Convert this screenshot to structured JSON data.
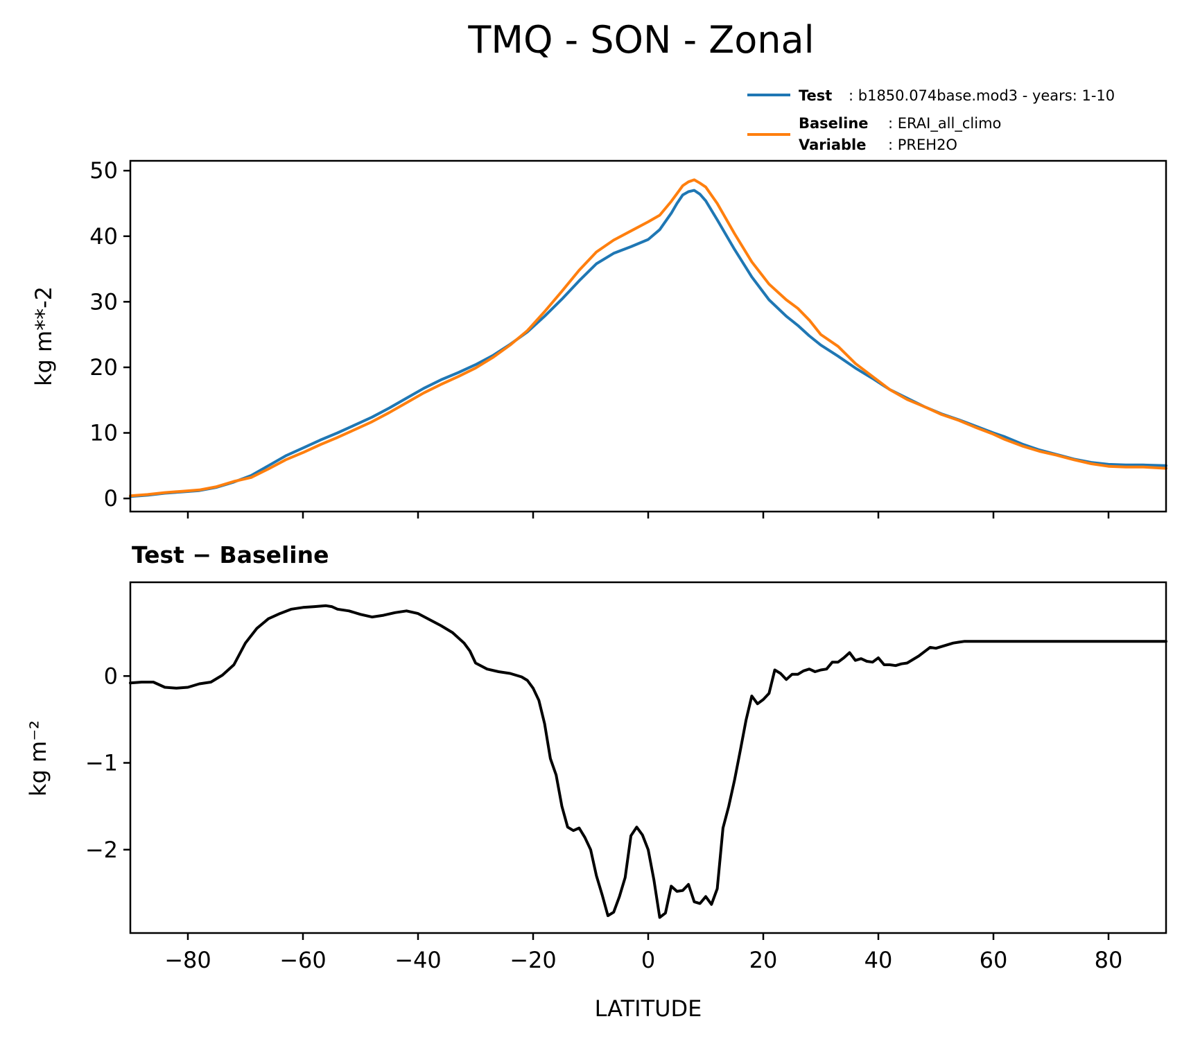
{
  "figure": {
    "title": "TMQ - SON - Zonal",
    "xlabel": "LATITUDE",
    "legend": {
      "test_key": "Test",
      "test_value": ": b1850.074base.mod3 - years: 1-10",
      "baseline_key": "Baseline",
      "baseline_value": ": ERAI_all_climo",
      "variable_key": "Variable",
      "variable_value": ": PREH2O"
    },
    "top_panel": {
      "ylabel": "kg m**-2"
    },
    "bottom_panel": {
      "title": "Test − Baseline",
      "ylabel": "kg m⁻²"
    }
  },
  "chart_data": [
    {
      "type": "line",
      "panel": "top",
      "ylabel": "kg m**-2",
      "xlim": [
        -90,
        90
      ],
      "ylim": [
        -2,
        51.5
      ],
      "xticks": [
        -80,
        -60,
        -40,
        -20,
        0,
        20,
        40,
        60,
        80
      ],
      "yticks": [
        0,
        10,
        20,
        30,
        40,
        50
      ],
      "ytick_labels": [
        "0",
        "10",
        "20",
        "30",
        "40",
        "50"
      ],
      "legend_position": "top-right, above plot",
      "grid": false,
      "x": [
        -90,
        -87,
        -84,
        -81,
        -78,
        -75,
        -72,
        -69,
        -66,
        -63,
        -60,
        -57,
        -54,
        -51,
        -48,
        -45,
        -42,
        -39,
        -36,
        -33,
        -30,
        -27,
        -24,
        -21,
        -18,
        -15,
        -12,
        -9,
        -6,
        -3,
        0,
        2,
        4,
        5,
        6,
        7,
        8,
        9,
        10,
        12,
        15,
        18,
        21,
        24,
        26,
        28,
        30,
        33,
        36,
        39,
        42,
        45,
        48,
        51,
        54,
        57,
        60,
        62,
        65,
        68,
        71,
        74,
        77,
        80,
        83,
        86,
        90
      ],
      "series": [
        {
          "name": "Test",
          "color": "#1f77b4",
          "values": [
            0.3,
            0.5,
            0.8,
            1.0,
            1.2,
            1.7,
            2.5,
            3.5,
            5.0,
            6.5,
            7.7,
            8.9,
            10.0,
            11.2,
            12.4,
            13.8,
            15.3,
            16.8,
            18.1,
            19.2,
            20.4,
            21.8,
            23.5,
            25.4,
            27.8,
            30.4,
            33.2,
            35.8,
            37.4,
            38.4,
            39.5,
            41.0,
            43.5,
            45.0,
            46.3,
            46.8,
            47.0,
            46.4,
            45.4,
            42.5,
            38.0,
            33.8,
            30.3,
            27.8,
            26.4,
            24.8,
            23.4,
            21.7,
            19.9,
            18.3,
            16.6,
            15.3,
            14.0,
            12.9,
            12.0,
            11.0,
            10.0,
            9.4,
            8.3,
            7.4,
            6.7,
            6.0,
            5.5,
            5.2,
            5.1,
            5.1,
            5.0
          ]
        },
        {
          "name": "Baseline",
          "color": "#ff7f0e",
          "values": [
            0.4,
            0.6,
            0.9,
            1.1,
            1.3,
            1.8,
            2.6,
            3.2,
            4.5,
            5.9,
            7.0,
            8.2,
            9.3,
            10.5,
            11.7,
            13.1,
            14.6,
            16.1,
            17.4,
            18.6,
            19.9,
            21.5,
            23.4,
            25.6,
            28.5,
            31.6,
            34.8,
            37.6,
            39.4,
            40.8,
            42.2,
            43.2,
            45.3,
            46.5,
            47.7,
            48.3,
            48.6,
            48.1,
            47.5,
            45.0,
            40.4,
            36.1,
            32.7,
            30.3,
            29.0,
            27.2,
            25.0,
            23.2,
            20.6,
            18.6,
            16.6,
            15.1,
            14.0,
            12.8,
            11.9,
            10.8,
            9.8,
            9.0,
            8.0,
            7.2,
            6.6,
            5.9,
            5.3,
            4.9,
            4.8,
            4.8,
            4.6
          ]
        }
      ]
    },
    {
      "type": "line",
      "panel": "bottom",
      "title": "Test − Baseline",
      "xlabel": "LATITUDE",
      "ylabel": "kg m⁻²",
      "xlim": [
        -90,
        90
      ],
      "ylim": [
        -2.96,
        1.08
      ],
      "xticks": [
        -80,
        -60,
        -40,
        -20,
        0,
        20,
        40,
        60,
        80
      ],
      "xtick_labels": [
        "−80",
        "−60",
        "−40",
        "−20",
        "0",
        "20",
        "40",
        "60",
        "80"
      ],
      "yticks": [
        0,
        -1,
        -2
      ],
      "ytick_labels": [
        "0",
        "−1",
        "−2"
      ],
      "grid": false,
      "x": [
        -90,
        -88,
        -86,
        -84,
        -82,
        -80,
        -78,
        -76,
        -74,
        -72,
        -70,
        -68,
        -66,
        -64,
        -62,
        -60,
        -58,
        -56,
        -55,
        -54,
        -52,
        -50,
        -48,
        -46,
        -44,
        -42,
        -40,
        -38,
        -36,
        -34,
        -32,
        -31,
        -30,
        -28,
        -26,
        -24,
        -22,
        -21,
        -20,
        -19,
        -18,
        -17,
        -16,
        -15,
        -14,
        -13,
        -12,
        -11,
        -10,
        -9,
        -8,
        -7,
        -6,
        -5,
        -4,
        -3,
        -2,
        -1,
        0,
        1,
        2,
        3,
        4,
        5,
        6,
        7,
        8,
        9,
        10,
        11,
        12,
        13,
        14,
        15,
        16,
        17,
        18,
        19,
        20,
        21,
        22,
        23,
        24,
        25,
        26,
        27,
        28,
        29,
        30,
        31,
        32,
        33,
        34,
        35,
        36,
        37,
        38,
        39,
        40,
        41,
        42,
        43,
        44,
        45,
        46,
        47,
        48,
        49,
        50,
        51,
        52,
        53,
        54,
        55,
        56,
        57,
        58,
        59,
        60,
        61,
        62,
        63,
        64,
        65,
        66,
        67,
        68,
        69,
        70,
        71,
        72,
        73,
        74,
        75,
        76,
        77,
        78,
        79,
        80,
        81,
        82,
        83,
        84,
        85,
        86,
        87,
        88,
        89,
        90
      ],
      "series": [
        {
          "name": "",
          "color": "#000000",
          "values": [
            -0.08,
            -0.07,
            -0.07,
            -0.13,
            -0.14,
            -0.13,
            -0.09,
            -0.07,
            0.01,
            0.13,
            0.38,
            0.55,
            0.66,
            0.72,
            0.77,
            0.79,
            0.8,
            0.81,
            0.8,
            0.77,
            0.75,
            0.71,
            0.68,
            0.7,
            0.73,
            0.75,
            0.72,
            0.65,
            0.58,
            0.5,
            0.38,
            0.29,
            0.15,
            0.08,
            0.05,
            0.03,
            -0.01,
            -0.05,
            -0.14,
            -0.28,
            -0.55,
            -0.95,
            -1.14,
            -1.5,
            -1.74,
            -1.78,
            -1.75,
            -1.86,
            -2.0,
            -2.3,
            -2.52,
            -2.76,
            -2.72,
            -2.54,
            -2.32,
            -1.84,
            -1.74,
            -1.83,
            -2.0,
            -2.35,
            -2.78,
            -2.73,
            -2.42,
            -2.48,
            -2.47,
            -2.4,
            -2.6,
            -2.62,
            -2.54,
            -2.63,
            -2.45,
            -1.75,
            -1.5,
            -1.2,
            -0.86,
            -0.51,
            -0.23,
            -0.32,
            -0.27,
            -0.2,
            0.07,
            0.03,
            -0.04,
            0.02,
            0.02,
            0.06,
            0.08,
            0.05,
            0.07,
            0.08,
            0.16,
            0.16,
            0.21,
            0.27,
            0.18,
            0.2,
            0.17,
            0.16,
            0.21,
            0.13,
            0.13,
            0.12,
            0.14,
            0.15,
            0.19,
            0.23,
            0.28,
            0.33,
            0.32,
            0.34,
            0.36,
            0.38,
            0.39,
            0.4,
            0.4,
            0.4,
            0.4,
            0.4,
            0.4,
            0.4,
            0.4,
            0.4,
            0.4,
            0.4,
            0.4,
            0.4,
            0.4,
            0.4,
            0.4,
            0.4,
            0.4,
            0.4,
            0.4,
            0.4,
            0.4,
            0.4,
            0.4,
            0.4,
            0.4,
            0.4,
            0.4,
            0.4,
            0.4,
            0.4,
            0.4,
            0.4,
            0.4,
            0.4,
            0.4
          ]
        }
      ]
    }
  ]
}
